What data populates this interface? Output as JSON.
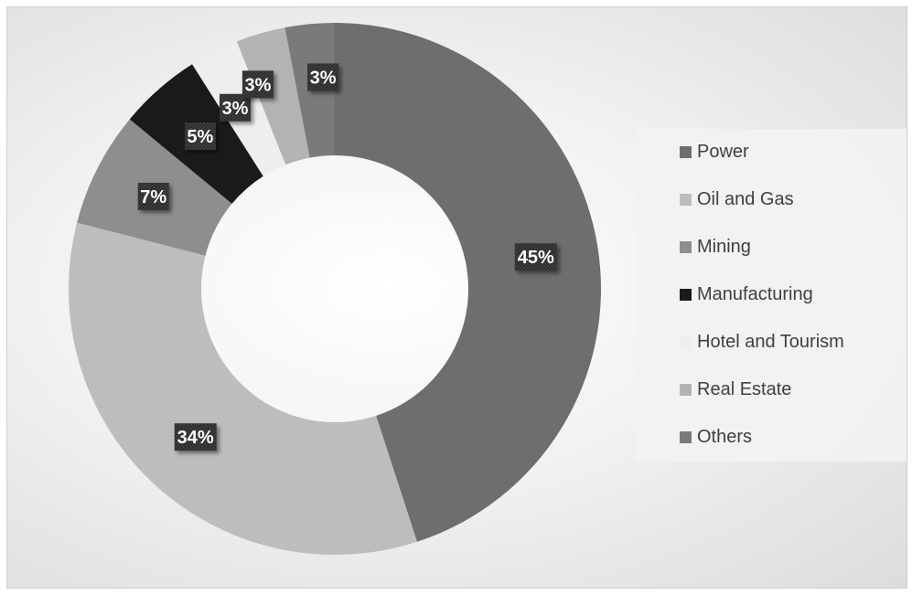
{
  "chart_data": {
    "type": "pie",
    "variant": "doughnut",
    "title": "",
    "legend_position": "right",
    "categories": [
      "Power",
      "Oil and Gas",
      "Mining",
      "Manufacturing",
      "Hotel and Tourism",
      "Real Estate",
      "Others"
    ],
    "values": [
      45,
      34,
      7,
      5,
      3,
      3,
      3
    ],
    "labels": [
      "45%",
      "34%",
      "7%",
      "5%",
      "3%",
      "3%",
      "3%"
    ],
    "unit": "%",
    "colors": [
      "#6e6e6e",
      "#bdbdbd",
      "#8e8e8e",
      "#1a1a1a",
      "#eeeeee",
      "#b3b3b3",
      "#7a7a7a"
    ]
  }
}
